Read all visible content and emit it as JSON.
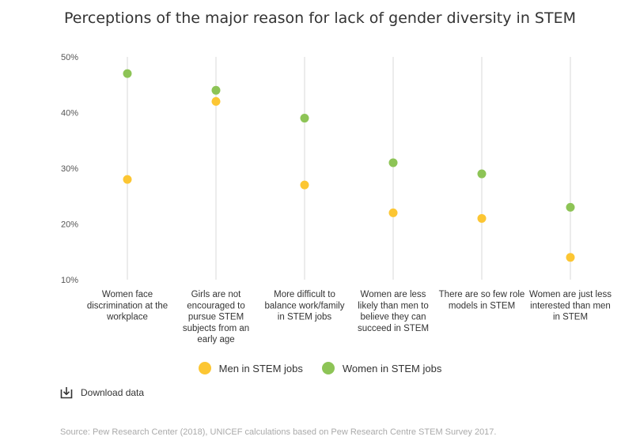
{
  "chart_data": {
    "type": "scatter",
    "title": "Perceptions of the major reason for lack of gender diversity in STEM",
    "categories": [
      "Women face discrimination at the workplace",
      "Girls are not encouraged to pursue STEM subjects from an early age",
      "More difficult to balance work/family in STEM jobs",
      "Women are less likely than men to believe they can succeed in STEM",
      "There are so few role models in STEM",
      "Women are just less interested than men in STEM"
    ],
    "category_lines": [
      [
        "Women face",
        "discrimination at the",
        "workplace"
      ],
      [
        "Girls are not",
        "encouraged to",
        "pursue STEM",
        "subjects from an",
        "early age"
      ],
      [
        "More difficult to",
        "balance work/family",
        "in STEM jobs"
      ],
      [
        "Women are less",
        "likely than men to",
        "believe they can",
        "succeed in STEM"
      ],
      [
        "There are so few role",
        "models in STEM"
      ],
      [
        "Women are just less",
        "interested than men",
        "in STEM"
      ]
    ],
    "series": [
      {
        "name": "Men in STEM jobs",
        "color": "#fcc633",
        "values": [
          28,
          42,
          27,
          22,
          21,
          14
        ]
      },
      {
        "name": "Women in STEM jobs",
        "color": "#8dc456",
        "values": [
          47,
          44,
          39,
          31,
          29,
          23
        ]
      }
    ],
    "ylim": [
      10,
      50
    ],
    "yticks": [
      "10%",
      "20%",
      "30%",
      "40%",
      "50%"
    ],
    "ytick_values": [
      10,
      20,
      30,
      40,
      50
    ],
    "grid": "vertical lines per category",
    "legend": "bottom-center"
  },
  "download_label": "Download data",
  "source": "Source: Pew Research Center (2018), UNICEF calculations based on Pew Research Centre STEM Survey 2017.",
  "icons": {
    "download": "download-icon"
  }
}
